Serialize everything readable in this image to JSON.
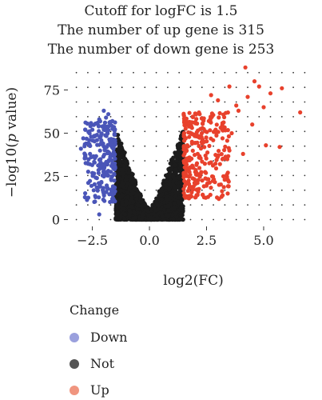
{
  "chart_data": {
    "type": "scatter",
    "title_lines": [
      "Cutoff for logFC is 1.5",
      "The number of up gene is 315",
      "The number of down gene is 253"
    ],
    "xlabel": "log2(FC)",
    "ylabel_prefix": "−log10(",
    "ylabel_italic": "p",
    "ylabel_suffix": " value)",
    "xlim": [
      -3.5,
      7.1
    ],
    "ylim": [
      -3,
      90
    ],
    "x_ticks": [
      -2.5,
      0.0,
      2.5,
      5.0
    ],
    "x_tick_labels": [
      "−2.5",
      "0.0",
      "2.5",
      "5.0"
    ],
    "y_ticks": [
      0,
      25,
      50,
      75
    ],
    "y_tick_labels": [
      "0",
      "25",
      "50",
      "75"
    ],
    "grid": "dotted",
    "logfc_cutoff": 1.5,
    "up_count": 315,
    "down_count": 253,
    "legend": {
      "title": "Change",
      "placement": "bottom",
      "items": [
        {
          "label": "Down",
          "color": "#4a55b8",
          "legend_color": "#9aa0dd"
        },
        {
          "label": "Not",
          "color": "#1c1c1c",
          "legend_color": "#555555"
        },
        {
          "label": "Up",
          "color": "#e8412c",
          "legend_color": "#f0957f"
        }
      ]
    },
    "highlight_points": {
      "up": [
        [
          4.2,
          88
        ],
        [
          3.5,
          77
        ],
        [
          4.6,
          80
        ],
        [
          4.8,
          77
        ],
        [
          5.3,
          73
        ],
        [
          5.8,
          76
        ],
        [
          4.3,
          71
        ],
        [
          3.8,
          66
        ],
        [
          3.0,
          69
        ],
        [
          2.7,
          72
        ],
        [
          3.9,
          63
        ],
        [
          5.0,
          65
        ],
        [
          6.6,
          62
        ],
        [
          5.1,
          43
        ],
        [
          5.7,
          42
        ],
        [
          4.1,
          38
        ],
        [
          3.5,
          40
        ],
        [
          3.2,
          47
        ],
        [
          2.6,
          57
        ],
        [
          2.2,
          61
        ],
        [
          4.5,
          55
        ],
        [
          2.9,
          52
        ],
        [
          2.4,
          45
        ],
        [
          3.6,
          50
        ]
      ],
      "down": [
        [
          -2.0,
          63
        ],
        [
          -2.2,
          58
        ],
        [
          -2.5,
          52
        ],
        [
          -2.9,
          47
        ],
        [
          -3.0,
          41
        ],
        [
          -2.7,
          44
        ],
        [
          -2.3,
          49
        ],
        [
          -1.9,
          59
        ],
        [
          -2.6,
          38
        ],
        [
          -2.8,
          36
        ],
        [
          -2.4,
          33
        ],
        [
          -2.0,
          52
        ],
        [
          -1.8,
          61
        ],
        [
          -2.1,
          45
        ],
        [
          -2.5,
          27
        ],
        [
          -2.3,
          24
        ],
        [
          -2.2,
          19
        ],
        [
          -2.0,
          15
        ],
        [
          -2.2,
          3
        ]
      ]
    }
  }
}
